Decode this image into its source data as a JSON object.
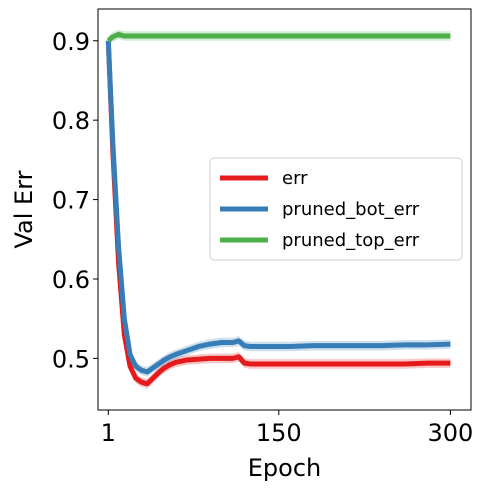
{
  "chart_data": {
    "type": "line",
    "title": "",
    "xlabel": "Epoch",
    "ylabel": "Val Err",
    "xlim": [
      -8,
      318
    ],
    "ylim": [
      0.435,
      0.94
    ],
    "xticks": [
      1,
      150,
      300
    ],
    "yticks": [
      0.5,
      0.6,
      0.7,
      0.8,
      0.9
    ],
    "ytick_labels": [
      "0.5",
      "0.6",
      "0.7",
      "0.8",
      "0.9"
    ],
    "grid": false,
    "legend": {
      "placement": "center-right"
    },
    "series": [
      {
        "name": "err",
        "color": "#e41a1c",
        "x": [
          1,
          5,
          10,
          15,
          20,
          25,
          30,
          35,
          40,
          45,
          50,
          55,
          60,
          70,
          80,
          90,
          100,
          110,
          115,
          120,
          125,
          130,
          140,
          160,
          180,
          200,
          220,
          240,
          260,
          280,
          300
        ],
        "y": [
          0.9,
          0.76,
          0.62,
          0.53,
          0.49,
          0.475,
          0.47,
          0.468,
          0.475,
          0.482,
          0.488,
          0.492,
          0.495,
          0.498,
          0.499,
          0.5,
          0.5,
          0.5,
          0.502,
          0.494,
          0.493,
          0.493,
          0.493,
          0.493,
          0.493,
          0.493,
          0.493,
          0.493,
          0.493,
          0.494,
          0.494
        ]
      },
      {
        "name": "pruned_bot_err",
        "color": "#377eb8",
        "x": [
          1,
          5,
          10,
          15,
          20,
          25,
          30,
          35,
          40,
          45,
          50,
          55,
          60,
          70,
          80,
          90,
          100,
          110,
          115,
          120,
          125,
          130,
          140,
          160,
          180,
          200,
          220,
          240,
          260,
          280,
          300
        ],
        "y": [
          0.9,
          0.77,
          0.64,
          0.55,
          0.505,
          0.49,
          0.485,
          0.483,
          0.488,
          0.493,
          0.498,
          0.502,
          0.505,
          0.51,
          0.515,
          0.518,
          0.52,
          0.52,
          0.522,
          0.516,
          0.515,
          0.515,
          0.515,
          0.515,
          0.516,
          0.516,
          0.516,
          0.516,
          0.517,
          0.517,
          0.518
        ]
      },
      {
        "name": "pruned_top_err",
        "color": "#4daf4a",
        "x": [
          1,
          5,
          10,
          15,
          20,
          40,
          60,
          80,
          100,
          120,
          140,
          160,
          180,
          200,
          220,
          240,
          260,
          280,
          300
        ],
        "y": [
          0.9,
          0.905,
          0.908,
          0.906,
          0.906,
          0.906,
          0.906,
          0.906,
          0.906,
          0.906,
          0.906,
          0.906,
          0.906,
          0.906,
          0.906,
          0.906,
          0.906,
          0.906,
          0.906
        ]
      }
    ]
  }
}
